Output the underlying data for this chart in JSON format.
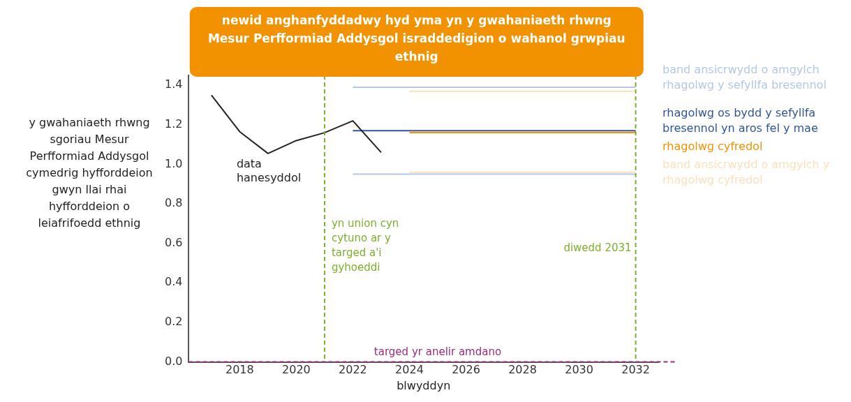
{
  "chart_data": {
    "type": "line",
    "title": "newid anghanfyddadwy hyd yma yn y gwahaniaeth rhwng Mesur Perfformiad Addysgol israddedigion o wahanol grwpiau ethnig",
    "xlabel": "blwyddyn",
    "ylabel": "y gwahaniaeth rhwng sgoriau Mesur Perfformiad Addysgol cymedrig hyfforddeion gwyn llai rhai hyfforddeion o leiafrifoedd ethnig",
    "xlim": [
      2016.2,
      2032.8
    ],
    "xticks": [
      2018,
      2020,
      2022,
      2024,
      2026,
      2028,
      2030,
      2032
    ],
    "ylim": [
      0,
      1.45
    ],
    "yticks": [
      {
        "value": 0,
        "label": "0.0"
      },
      {
        "value": 0.2,
        "label": "0.2"
      },
      {
        "value": 0.4,
        "label": "0.4"
      },
      {
        "value": 0.6,
        "label": "0.6"
      },
      {
        "value": 0.8,
        "label": "0.8"
      },
      {
        "value": 1,
        "label": "1.0"
      },
      {
        "value": 1.2,
        "label": "1.2"
      },
      {
        "value": 1.4,
        "label": "1.4"
      }
    ],
    "grid": false,
    "legend": false,
    "marker": "none",
    "line_style": "solid",
    "series": [
      {
        "name": "data hanesyddol",
        "color": "#222222",
        "x": [
          2017,
          2018,
          2019,
          2020,
          2021,
          2022,
          2023
        ],
        "values": [
          1.35,
          1.165,
          1.055,
          1.12,
          1.16,
          1.22,
          1.06
        ]
      },
      {
        "name": "band ansicrwydd o amgylch rhagolwg y sefyllfa bresennol",
        "color": "#b4c7e7",
        "x": [
          2022,
          2032
        ],
        "values": [
          1.39,
          1.39
        ]
      },
      {
        "color": "#fbe1bb",
        "x": [
          2024,
          2032
        ],
        "values": [
          1.37,
          1.37
        ]
      },
      {
        "name": "rhagolwg os bydd y sefyllfa bresennol yn aros fel y mae",
        "color": "#2f5597",
        "x": [
          2022,
          2032
        ],
        "values": [
          1.17,
          1.17
        ]
      },
      {
        "name": "rhagolwg cyfredol",
        "color": "#f39200",
        "x": [
          2024,
          2032
        ],
        "values": [
          1.16,
          1.16
        ]
      },
      {
        "name": "band ansicrwydd o amgylch y rhagolwg cyfredol",
        "color": "#fbe1bb",
        "x": [
          2024,
          2032
        ],
        "values": [
          0.96,
          0.96
        ]
      },
      {
        "color": "#b4c7e7",
        "x": [
          2022,
          2032
        ],
        "values": [
          0.95,
          0.95
        ]
      }
    ],
    "ref_lines": [
      {
        "axis": "x",
        "value": 2021,
        "label": "yn union cyn cytuno ar y targed a'i gyhoeddi",
        "color": "#7cb02c",
        "line_style": "dashed"
      },
      {
        "axis": "x",
        "value": 2032,
        "label": "diwedd 2031",
        "color": "#7cb02c",
        "line_style": "dashed"
      },
      {
        "axis": "y",
        "value": 0,
        "label": "targed yr anelir amdano",
        "color": "#9b2d7f",
        "line_style": "dashed"
      }
    ]
  }
}
